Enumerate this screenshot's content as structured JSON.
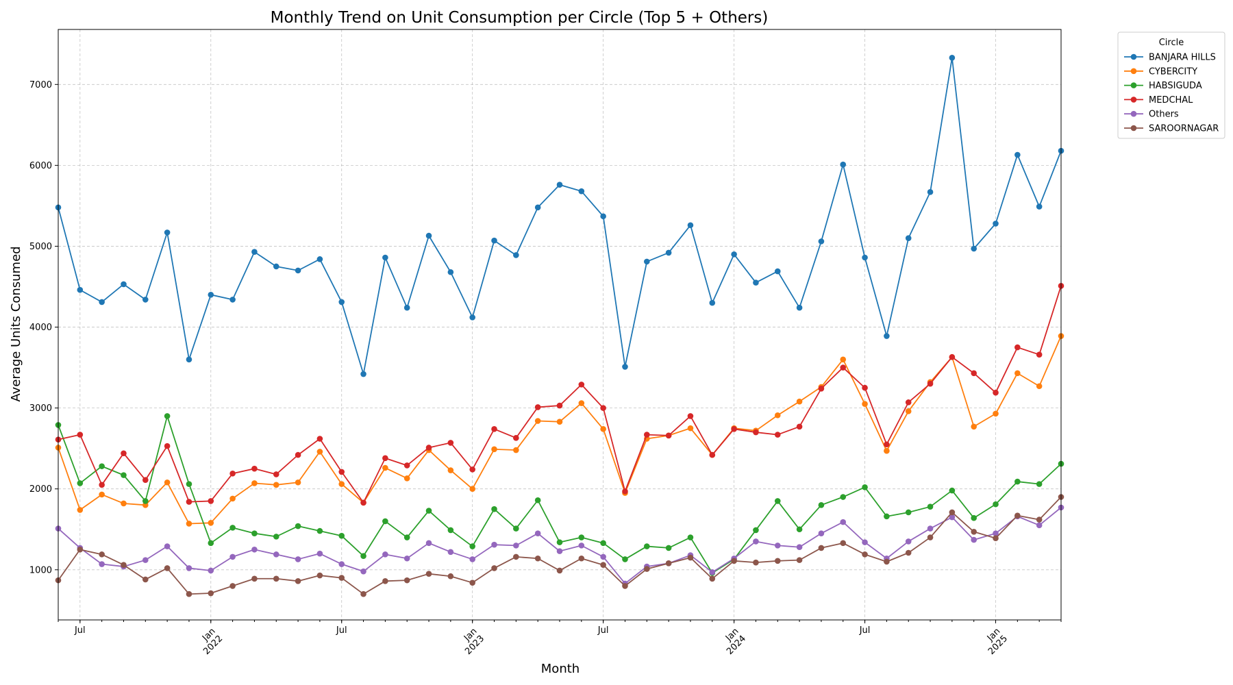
{
  "chart_data": {
    "type": "line",
    "title": "Monthly Trend on Unit Consumption per Circle (Top 5 + Others)",
    "xlabel": "Month",
    "ylabel": "Average Units Consumed",
    "x_start": "2021-06",
    "x_end": "2025-04",
    "ylim": [
      380,
      7680
    ],
    "yticks": [
      1000,
      2000,
      3000,
      4000,
      5000,
      6000,
      7000
    ],
    "ytick_labels": [
      "1000",
      "2000",
      "3000",
      "4000",
      "5000",
      "6000",
      "7000"
    ],
    "xticks": [
      {
        "month": "2021-07",
        "label": "Jul",
        "year": "",
        "major": false
      },
      {
        "month": "2022-01",
        "label": "Jan",
        "year": "2022",
        "major": true
      },
      {
        "month": "2022-07",
        "label": "Jul",
        "year": "",
        "major": false
      },
      {
        "month": "2023-01",
        "label": "Jan",
        "year": "2023",
        "major": true
      },
      {
        "month": "2023-07",
        "label": "Jul",
        "year": "",
        "major": false
      },
      {
        "month": "2024-01",
        "label": "Jan",
        "year": "2024",
        "major": true
      },
      {
        "month": "2024-07",
        "label": "Jul",
        "year": "",
        "major": false
      },
      {
        "month": "2025-01",
        "label": "Jan",
        "year": "2025",
        "major": true
      }
    ],
    "grid": true,
    "legend": {
      "title": "Circle",
      "placement": "outside-top-right"
    },
    "series": [
      {
        "name": "BANJARA HILLS",
        "color": "#1f77b4",
        "values": [
          5480,
          4460,
          4310,
          4530,
          4340,
          5170,
          3600,
          4400,
          4340,
          4930,
          4750,
          4700,
          4840,
          4310,
          3420,
          4860,
          4240,
          5130,
          4680,
          4120,
          5070,
          4890,
          5480,
          5760,
          5680,
          5370,
          3510,
          4810,
          4920,
          5260,
          4300,
          4900,
          4550,
          4690,
          4240,
          5060,
          6010,
          4860,
          3890,
          5100,
          5670,
          7330,
          4970,
          5280,
          6130,
          5490,
          6180
        ]
      },
      {
        "name": "CYBERCITY",
        "color": "#ff7f0e",
        "values": [
          2510,
          1740,
          1930,
          1820,
          1800,
          2080,
          1570,
          1580,
          1880,
          2070,
          2050,
          2080,
          2460,
          2060,
          1830,
          2260,
          2130,
          2480,
          2230,
          2000,
          2490,
          2480,
          2840,
          2830,
          3060,
          2740,
          1950,
          2620,
          2660,
          2750,
          2420,
          2750,
          2720,
          2910,
          3080,
          3260,
          3600,
          3050,
          2470,
          2960,
          3320,
          3630,
          2770,
          2930,
          3430,
          3270,
          3890
        ]
      },
      {
        "name": "HABSIGUDA",
        "color": "#2ca02c",
        "values": [
          2790,
          2070,
          2280,
          2170,
          1850,
          2900,
          2060,
          1330,
          1520,
          1450,
          1410,
          1540,
          1480,
          1420,
          1170,
          1600,
          1400,
          1730,
          1490,
          1290,
          1750,
          1510,
          1860,
          1340,
          1400,
          1330,
          1130,
          1290,
          1270,
          1400,
          960,
          1130,
          1490,
          1850,
          1500,
          1800,
          1900,
          2020,
          1660,
          1710,
          1780,
          1980,
          1640,
          1810,
          2090,
          2060,
          2310
        ]
      },
      {
        "name": "MEDCHAL",
        "color": "#d62728",
        "values": [
          2610,
          2670,
          2050,
          2440,
          2110,
          2530,
          1840,
          1850,
          2190,
          2250,
          2180,
          2420,
          2620,
          2210,
          1830,
          2380,
          2290,
          2510,
          2570,
          2240,
          2740,
          2630,
          3010,
          3030,
          3290,
          3000,
          1970,
          2670,
          2660,
          2900,
          2420,
          2740,
          2700,
          2670,
          2770,
          3240,
          3500,
          3250,
          2550,
          3070,
          3300,
          3630,
          3430,
          3190,
          3750,
          3660,
          4510
        ]
      },
      {
        "name": "Others",
        "color": "#9467bd",
        "values": [
          1510,
          1270,
          1070,
          1040,
          1120,
          1290,
          1020,
          990,
          1160,
          1250,
          1190,
          1130,
          1200,
          1070,
          980,
          1190,
          1140,
          1330,
          1220,
          1130,
          1310,
          1300,
          1450,
          1230,
          1300,
          1160,
          830,
          1040,
          1080,
          1180,
          970,
          1140,
          1350,
          1300,
          1280,
          1450,
          1590,
          1340,
          1140,
          1350,
          1510,
          1650,
          1370,
          1450,
          1660,
          1550,
          1770
        ]
      },
      {
        "name": "SAROORNAGAR",
        "color": "#8c564b",
        "values": [
          870,
          1250,
          1190,
          1060,
          880,
          1020,
          700,
          710,
          800,
          890,
          890,
          860,
          930,
          900,
          700,
          860,
          870,
          950,
          920,
          840,
          1020,
          1160,
          1140,
          990,
          1140,
          1060,
          800,
          1010,
          1080,
          1150,
          890,
          1110,
          1090,
          1110,
          1120,
          1270,
          1330,
          1190,
          1100,
          1210,
          1400,
          1710,
          1470,
          1390,
          1670,
          1620,
          1900
        ]
      }
    ]
  }
}
